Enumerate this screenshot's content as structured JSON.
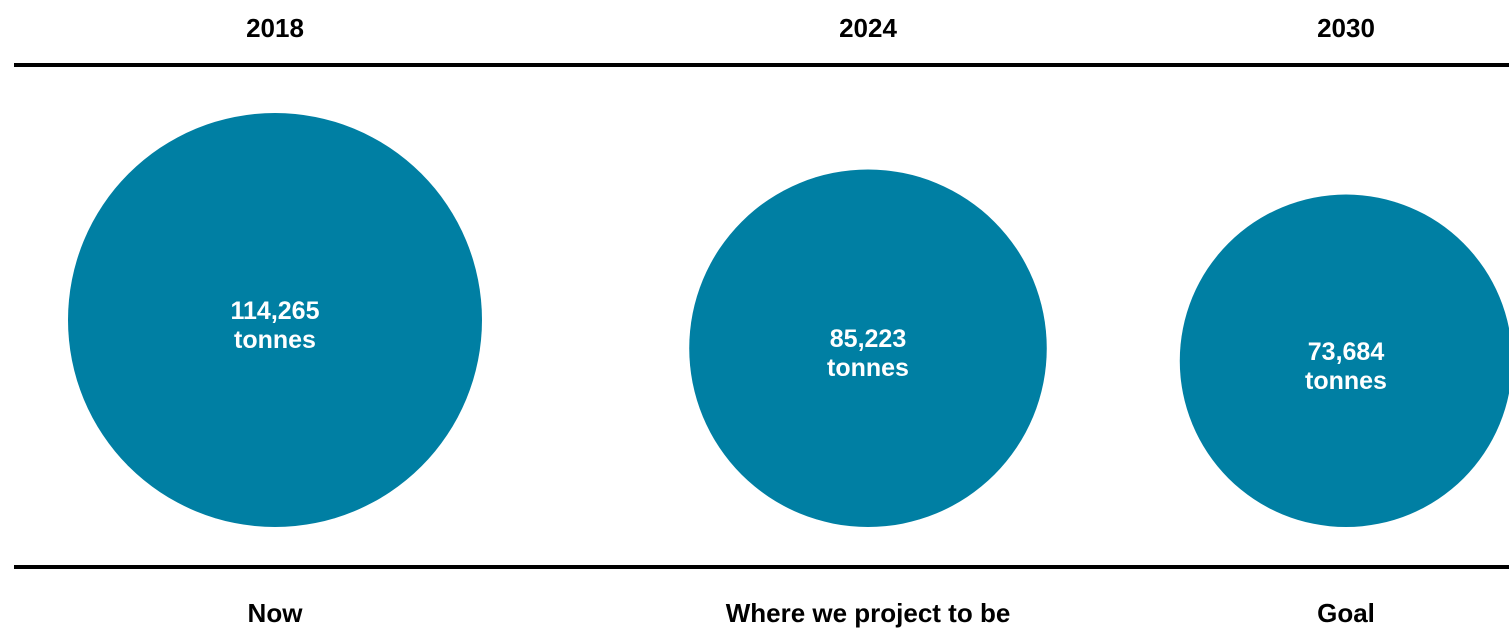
{
  "chart_data": {
    "type": "bubble",
    "unit": "tonnes",
    "bubble_color": "#007fa3",
    "rule_color": "#000000",
    "label_color": "#000000",
    "bubble_text_color": "#ffffff",
    "points": [
      {
        "year": "2018",
        "value": 114265,
        "value_label": "114,265",
        "unit_label": "tonnes",
        "caption": "Now"
      },
      {
        "year": "2024",
        "value": 85223,
        "value_label": "85,223",
        "unit_label": "tonnes",
        "caption": "Where we project to be"
      },
      {
        "year": "2030",
        "value": 73684,
        "value_label": "73,684",
        "unit_label": "tonnes",
        "caption": "Goal"
      }
    ]
  }
}
